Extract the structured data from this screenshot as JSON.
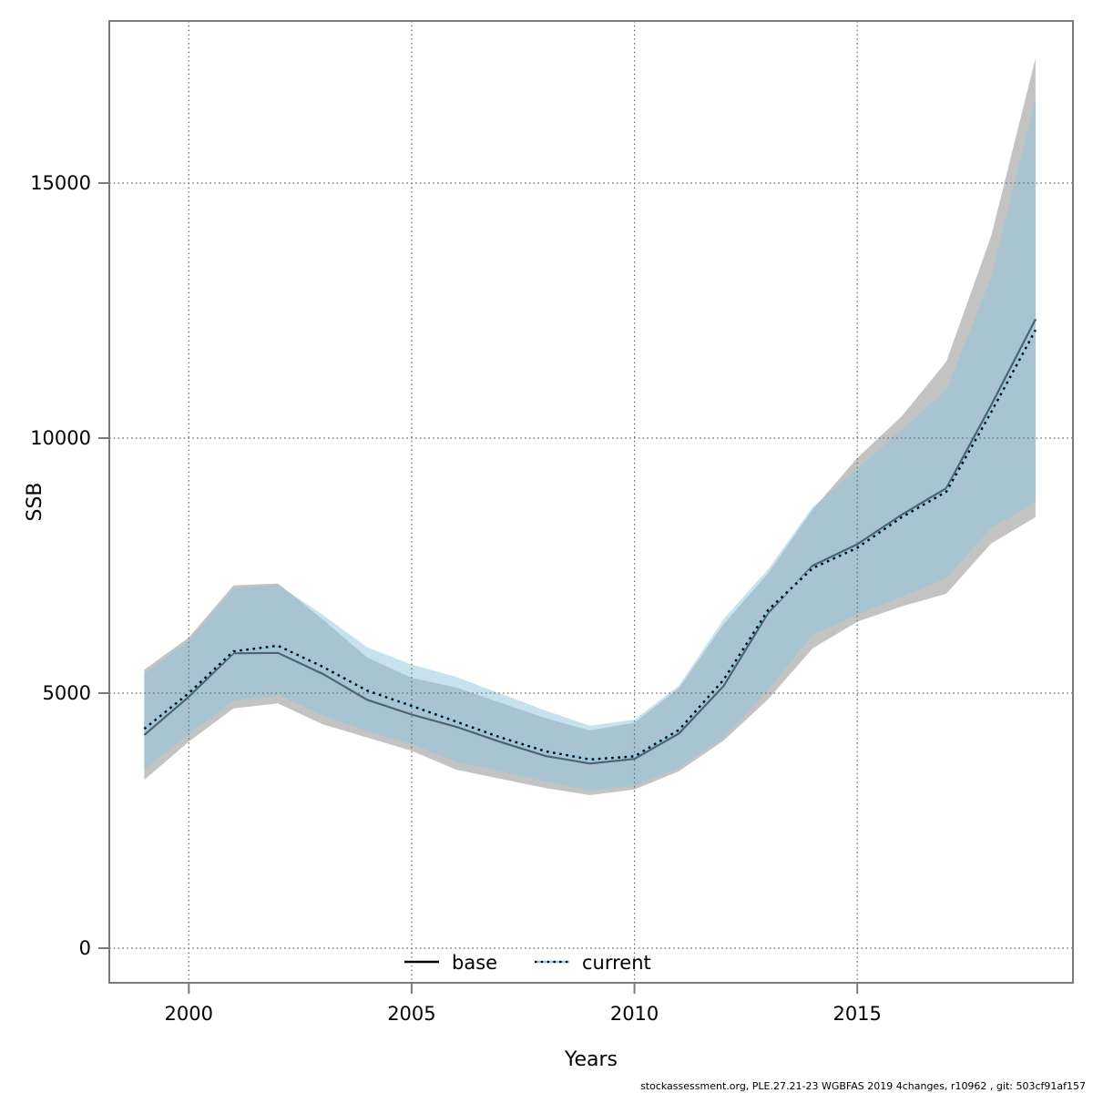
{
  "page": {
    "background": "#ffffff"
  },
  "footer": {
    "text": "stockassessment.org, PLE.27.21-23 WGBFAS 2019 4changes, r10962 , git: 503cf91af157"
  },
  "chart_data": {
    "type": "line",
    "title": "",
    "xlabel": "Years",
    "ylabel": "SSB",
    "grid": true,
    "xlim": [
      1998.216,
      2019.84
    ],
    "ylim": [
      -679,
      18179
    ],
    "xticks": [
      2000,
      2005,
      2010,
      2015
    ],
    "yticks": [
      0,
      5000,
      10000,
      15000
    ],
    "x": [
      1999,
      2000,
      2001,
      2002,
      2003,
      2004,
      2005,
      2006,
      2007,
      2008,
      2009,
      2010,
      2011,
      2012,
      2013,
      2014,
      2015,
      2016,
      2017,
      2018,
      2019
    ],
    "series": [
      {
        "name": "base",
        "role": "median",
        "style": "solid",
        "color": "#000000",
        "values": [
          4180,
          4930,
          5780,
          5790,
          5380,
          4870,
          4580,
          4340,
          4040,
          3770,
          3620,
          3710,
          4210,
          5140,
          6570,
          7500,
          7920,
          8500,
          9020,
          10640,
          12330
        ]
      },
      {
        "name": "current",
        "role": "median",
        "style": "dotted",
        "color": "#000000",
        "under_color": "#8FCAE4",
        "values": [
          4300,
          5000,
          5820,
          5930,
          5520,
          5050,
          4750,
          4440,
          4130,
          3860,
          3700,
          3760,
          4280,
          5260,
          6630,
          7450,
          7850,
          8450,
          8950,
          10500,
          12120
        ]
      }
    ],
    "bands": [
      {
        "name": "base-ci",
        "fill": "rgba(127,127,127,0.47)",
        "lower": [
          3300,
          4050,
          4700,
          4800,
          4390,
          4130,
          3870,
          3500,
          3320,
          3140,
          3000,
          3110,
          3470,
          4070,
          4880,
          5880,
          6400,
          6700,
          6950,
          7930,
          8450
        ],
        "upper": [
          5460,
          6090,
          7110,
          7150,
          6450,
          5700,
          5300,
          5110,
          4810,
          4510,
          4270,
          4420,
          5100,
          6350,
          7350,
          8600,
          9610,
          10430,
          11500,
          13950,
          17450
        ]
      },
      {
        "name": "current-ci",
        "fill": "rgba(145,198,223,0.51)",
        "lower": [
          3500,
          4200,
          4840,
          4960,
          4570,
          4250,
          4000,
          3650,
          3470,
          3270,
          3090,
          3180,
          3540,
          4130,
          5060,
          6150,
          6540,
          6890,
          7250,
          8230,
          8740
        ],
        "upper": [
          5380,
          6030,
          7040,
          7130,
          6540,
          5900,
          5560,
          5320,
          4990,
          4660,
          4360,
          4480,
          5150,
          6450,
          7430,
          8650,
          9400,
          10170,
          10950,
          13150,
          16650
        ]
      }
    ],
    "legend": {
      "position": "bottom-center",
      "items": [
        {
          "label": "base",
          "line": "solid-black"
        },
        {
          "label": "current",
          "line": "dotted-lightblue"
        }
      ]
    },
    "colors": {
      "grid": "#6a6a6a",
      "frame": "#7a7a7a",
      "base_band": "#c3c3c3",
      "current_band": "#a9c6d8",
      "current_band_only": "#c7e2ef"
    }
  }
}
